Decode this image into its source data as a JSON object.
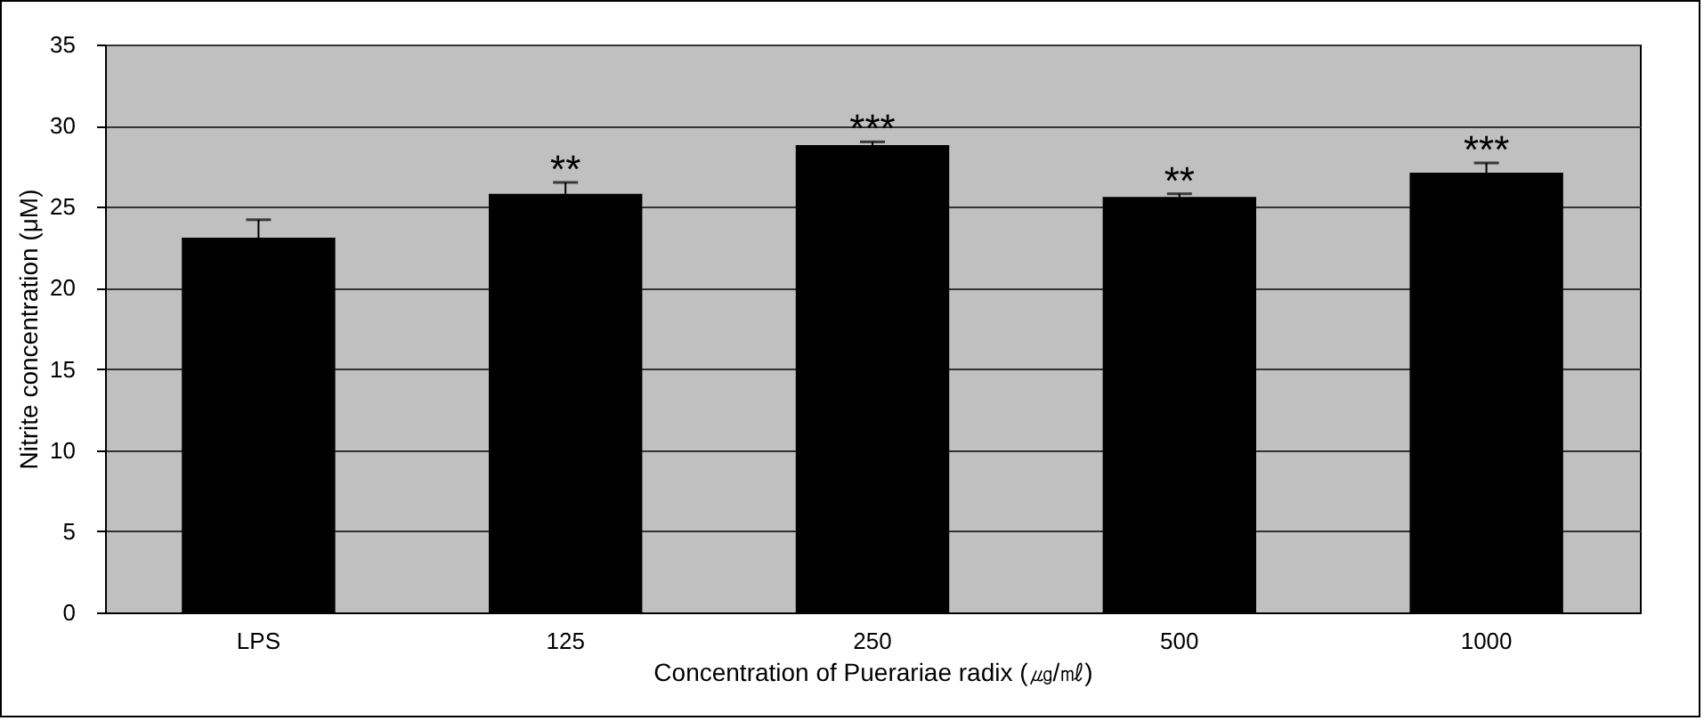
{
  "chart_data": {
    "type": "bar",
    "xlabel": "Concentration of Puerariae radix (㎍/㎖)",
    "ylabel": "Nitrite concentration (μM)",
    "categories": [
      "LPS",
      "125",
      "250",
      "500",
      "1000"
    ],
    "values": [
      23.1,
      25.8,
      28.8,
      25.6,
      27.1
    ],
    "errors": [
      1.1,
      0.7,
      0.2,
      0.2,
      0.6
    ],
    "color": "#000000",
    "ylim": [
      0,
      35
    ],
    "yticks": [
      0,
      5,
      10,
      15,
      20,
      25,
      30,
      35
    ],
    "grid": "y",
    "annotations": [
      {
        "text": "**",
        "x": "125",
        "y": 26.5
      },
      {
        "text": "***",
        "x": "250",
        "y": 29
      },
      {
        "text": "**",
        "x": "500",
        "y": 25.8
      },
      {
        "text": "***",
        "x": "1000",
        "y": 27.7
      }
    ]
  }
}
